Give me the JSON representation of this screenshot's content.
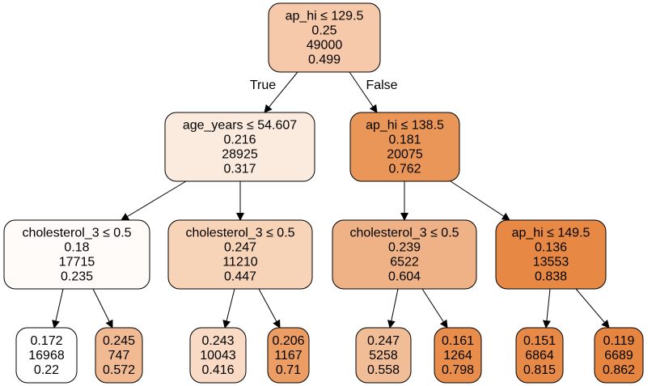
{
  "edge_labels": {
    "true_label": "True",
    "false_label": "False"
  },
  "nodes": [
    {
      "id": "n0",
      "lines": [
        "ap_hi ≤ 129.5",
        "0.25",
        "49000",
        "0.499"
      ],
      "fill": "#f5c9a9"
    },
    {
      "id": "n1",
      "lines": [
        "age_years ≤ 54.607",
        "0.216",
        "28925",
        "0.317"
      ],
      "fill": "#fbebdf"
    },
    {
      "id": "n2",
      "lines": [
        "ap_hi ≤ 138.5",
        "0.181",
        "20075",
        "0.762"
      ],
      "fill": "#ea9659"
    },
    {
      "id": "n3",
      "lines": [
        "cholesterol_3 ≤ 0.5",
        "0.18",
        "17715",
        "0.235"
      ],
      "fill": "#fefbf9"
    },
    {
      "id": "n4",
      "lines": [
        "cholesterol_3 ≤ 0.5",
        "0.247",
        "11210",
        "0.447"
      ],
      "fill": "#f7d3b8"
    },
    {
      "id": "n5",
      "lines": [
        "cholesterol_3 ≤ 0.5",
        "0.239",
        "6522",
        "0.604"
      ],
      "fill": "#efb286"
    },
    {
      "id": "n6",
      "lines": [
        "ap_hi ≤ 149.5",
        "0.136",
        "13553",
        "0.838"
      ],
      "fill": "#e78844"
    },
    {
      "id": "n7",
      "lines": [
        "0.172",
        "16968",
        "0.22"
      ],
      "fill": "#ffffff"
    },
    {
      "id": "n8",
      "lines": [
        "0.245",
        "747",
        "0.572"
      ],
      "fill": "#f1ba92"
    },
    {
      "id": "n9",
      "lines": [
        "0.243",
        "10043",
        "0.416"
      ],
      "fill": "#f8dac5"
    },
    {
      "id": "n10",
      "lines": [
        "0.206",
        "1167",
        "0.71"
      ],
      "fill": "#ec9d64"
    },
    {
      "id": "n11",
      "lines": [
        "0.247",
        "5258",
        "0.558"
      ],
      "fill": "#f1bd97"
    },
    {
      "id": "n12",
      "lines": [
        "0.161",
        "1264",
        "0.798"
      ],
      "fill": "#e88d4c"
    },
    {
      "id": "n13",
      "lines": [
        "0.151",
        "6864",
        "0.815"
      ],
      "fill": "#e88a47"
    },
    {
      "id": "n14",
      "lines": [
        "0.119",
        "6689",
        "0.862"
      ],
      "fill": "#e6853f"
    }
  ],
  "edges": [
    {
      "from": "n0",
      "to": "n1",
      "label": "true"
    },
    {
      "from": "n0",
      "to": "n2",
      "label": "false"
    },
    {
      "from": "n1",
      "to": "n3"
    },
    {
      "from": "n1",
      "to": "n4"
    },
    {
      "from": "n2",
      "to": "n5"
    },
    {
      "from": "n2",
      "to": "n6"
    },
    {
      "from": "n3",
      "to": "n7"
    },
    {
      "from": "n3",
      "to": "n8"
    },
    {
      "from": "n4",
      "to": "n9"
    },
    {
      "from": "n4",
      "to": "n10"
    },
    {
      "from": "n5",
      "to": "n11"
    },
    {
      "from": "n5",
      "to": "n12"
    },
    {
      "from": "n6",
      "to": "n13"
    },
    {
      "from": "n6",
      "to": "n14"
    }
  ]
}
